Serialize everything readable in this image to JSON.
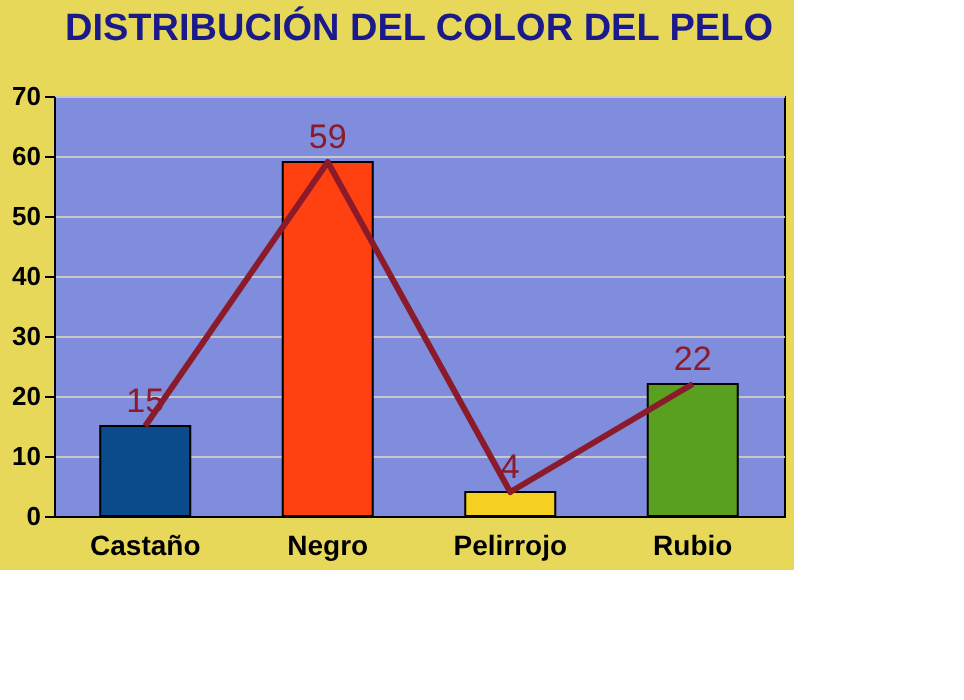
{
  "chart_data": {
    "type": "bar",
    "title": "DISTRIBUCIÓN DEL COLOR DEL PELO",
    "categories": [
      "Castaño",
      "Negro",
      "Pelirrojo",
      "Rubio"
    ],
    "series": [
      {
        "values": [
          15,
          59,
          4,
          22
        ],
        "colors": [
          "#0b4a8b",
          "#ff4010",
          "#f5d020",
          "#5aa020"
        ],
        "value_labels": [
          "15",
          "59",
          "4",
          "22"
        ]
      },
      {
        "type": "line",
        "color": "#8b1a2a",
        "values": [
          15,
          59,
          4,
          22
        ]
      }
    ],
    "ylim": [
      0,
      70
    ],
    "yticks": [
      0,
      10,
      20,
      30,
      40,
      50,
      60,
      70
    ],
    "grid": "y"
  }
}
